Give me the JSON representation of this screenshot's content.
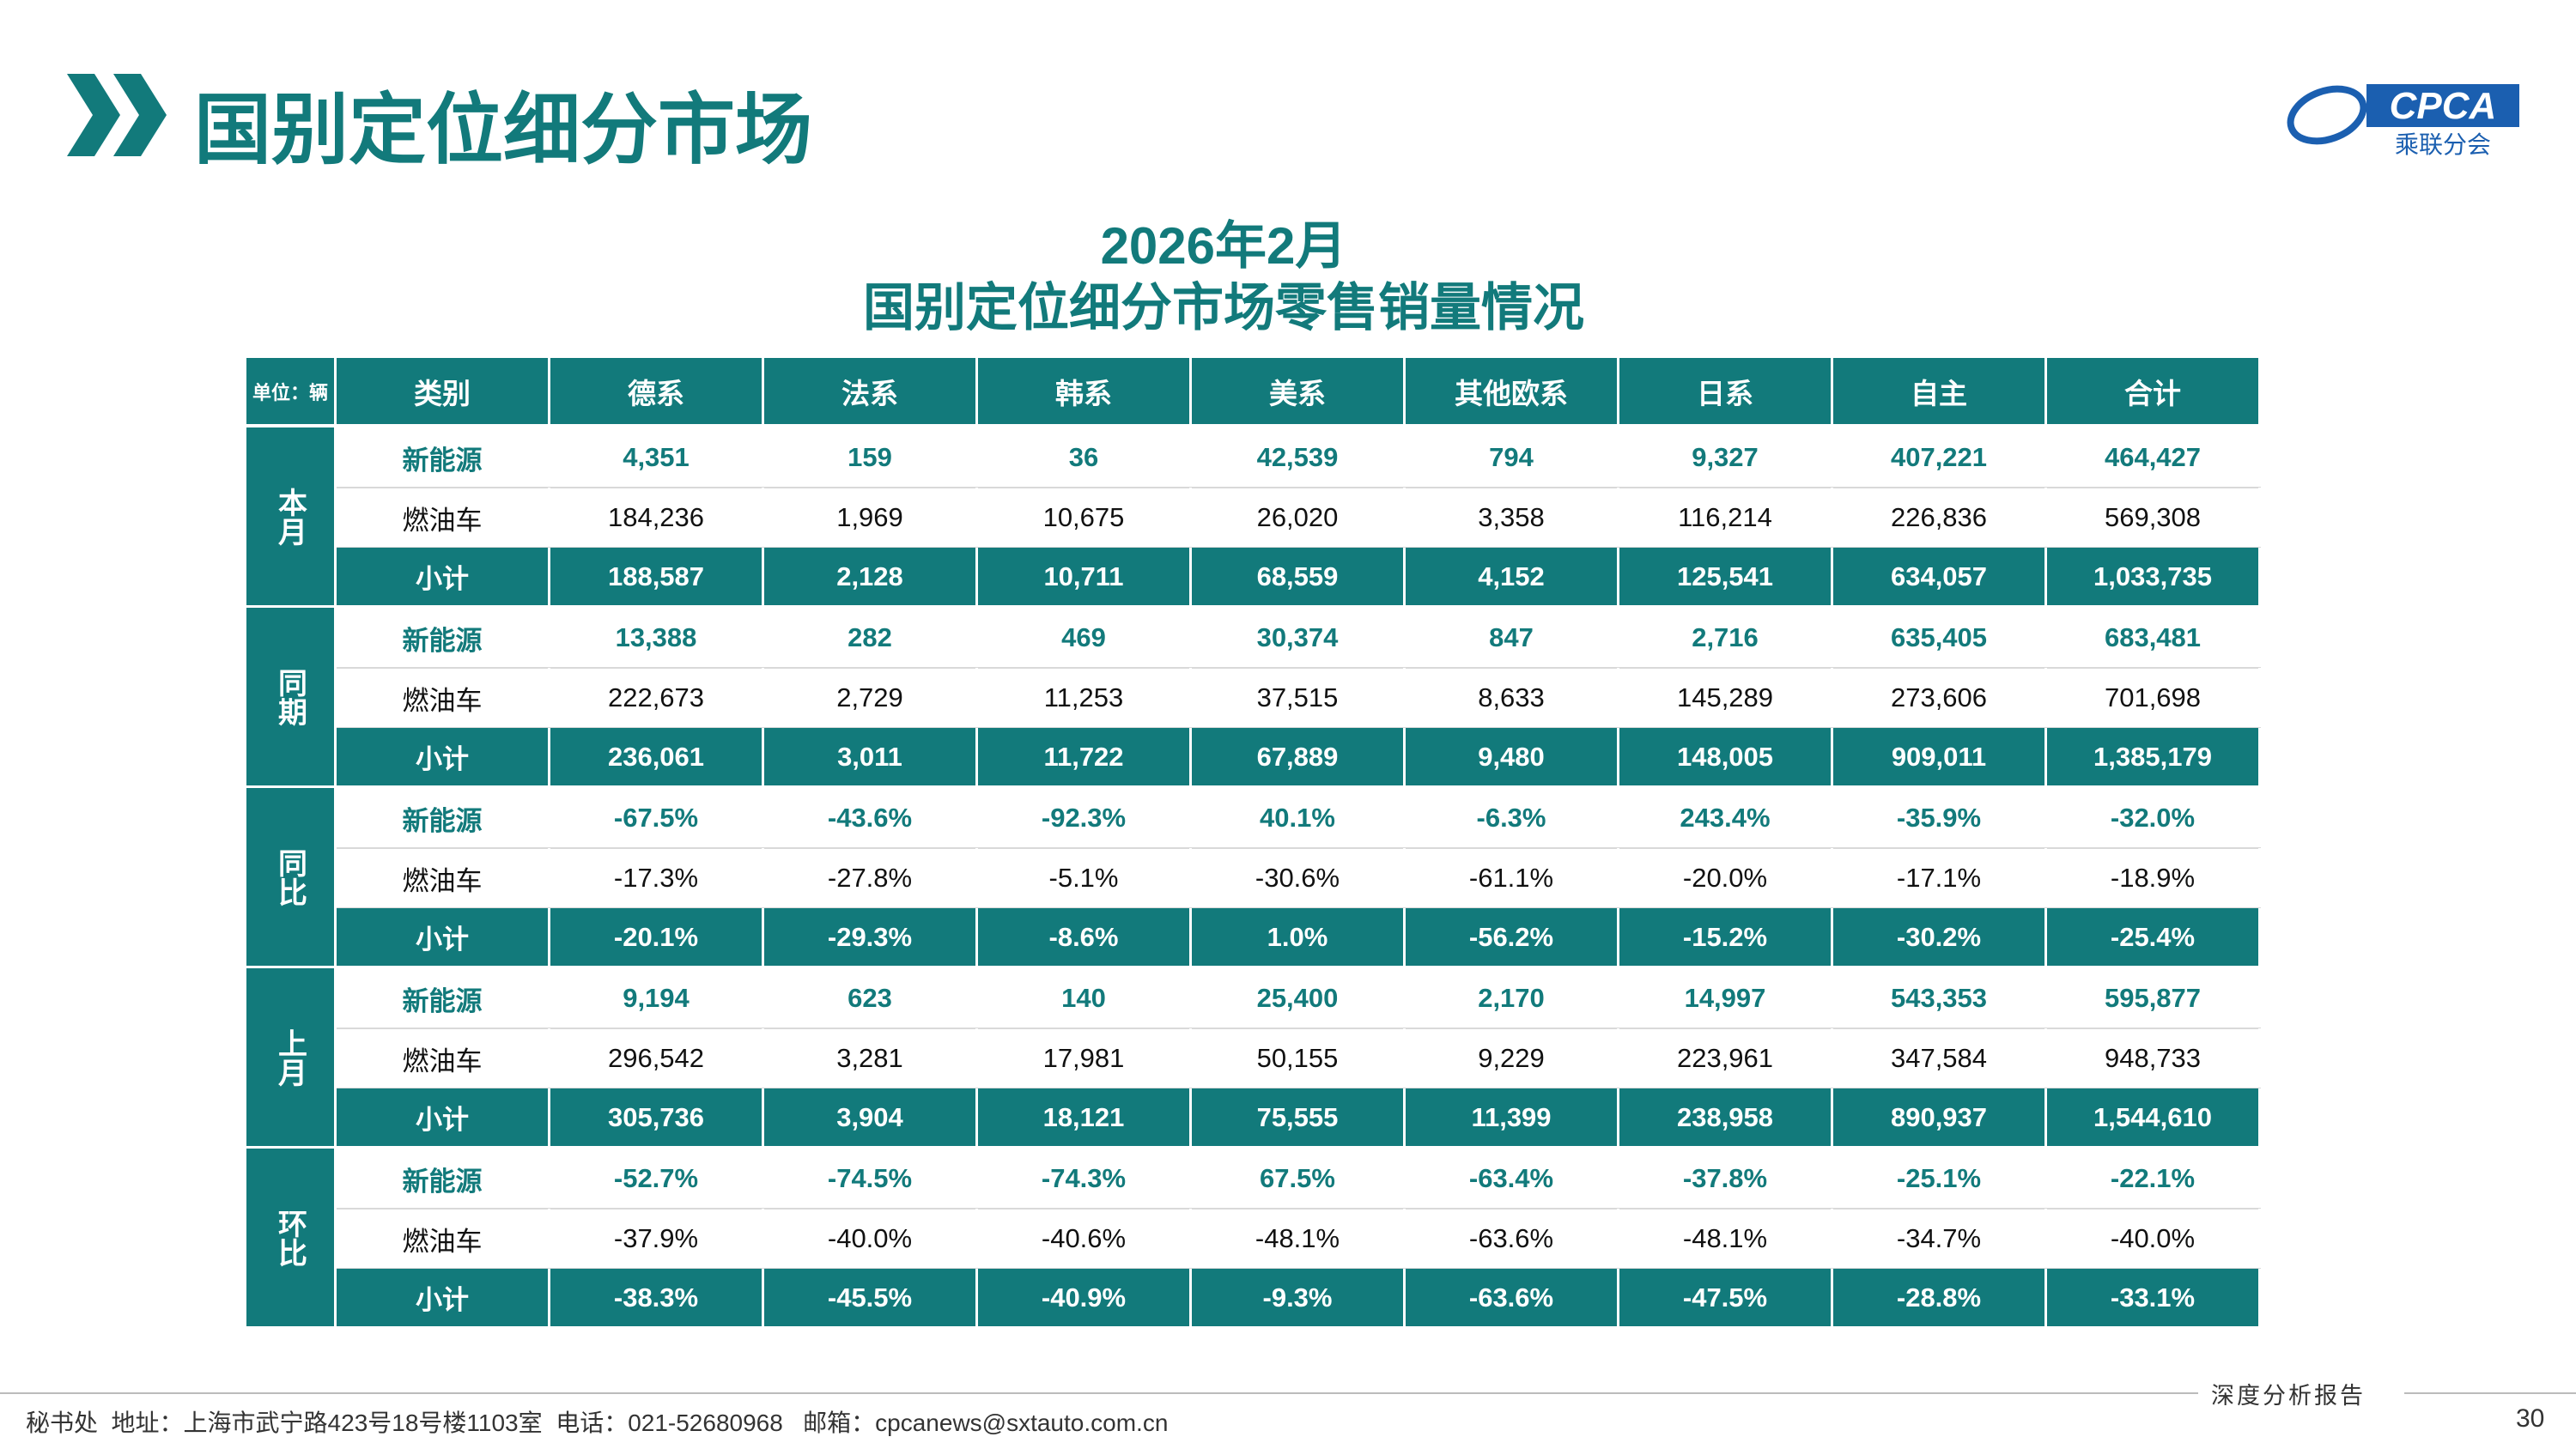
{
  "header": {
    "title": "国别定位细分市场",
    "logo_main": "CPCA",
    "logo_sub": "乘联分会"
  },
  "table": {
    "title_line1": "2026年2月",
    "title_line2": "国别定位细分市场零售销量情况",
    "unit": "单位：辆",
    "columns": [
      "类别",
      "德系",
      "法系",
      "韩系",
      "美系",
      "其他欧系",
      "日系",
      "自主",
      "合计"
    ],
    "groups": [
      {
        "label": "本月",
        "rows": [
          {
            "label": "新能源",
            "values": [
              "4,351",
              "159",
              "36",
              "42,539",
              "794",
              "9,327",
              "407,221",
              "464,427"
            ]
          },
          {
            "label": "燃油车",
            "values": [
              "184,236",
              "1,969",
              "10,675",
              "26,020",
              "3,358",
              "116,214",
              "226,836",
              "569,308"
            ]
          },
          {
            "label": "小计",
            "values": [
              "188,587",
              "2,128",
              "10,711",
              "68,559",
              "4,152",
              "125,541",
              "634,057",
              "1,033,735"
            ]
          }
        ]
      },
      {
        "label": "同期",
        "rows": [
          {
            "label": "新能源",
            "values": [
              "13,388",
              "282",
              "469",
              "30,374",
              "847",
              "2,716",
              "635,405",
              "683,481"
            ]
          },
          {
            "label": "燃油车",
            "values": [
              "222,673",
              "2,729",
              "11,253",
              "37,515",
              "8,633",
              "145,289",
              "273,606",
              "701,698"
            ]
          },
          {
            "label": "小计",
            "values": [
              "236,061",
              "3,011",
              "11,722",
              "67,889",
              "9,480",
              "148,005",
              "909,011",
              "1,385,179"
            ]
          }
        ]
      },
      {
        "label": "同比",
        "rows": [
          {
            "label": "新能源",
            "values": [
              "-67.5%",
              "-43.6%",
              "-92.3%",
              "40.1%",
              "-6.3%",
              "243.4%",
              "-35.9%",
              "-32.0%"
            ]
          },
          {
            "label": "燃油车",
            "values": [
              "-17.3%",
              "-27.8%",
              "-5.1%",
              "-30.6%",
              "-61.1%",
              "-20.0%",
              "-17.1%",
              "-18.9%"
            ]
          },
          {
            "label": "小计",
            "values": [
              "-20.1%",
              "-29.3%",
              "-8.6%",
              "1.0%",
              "-56.2%",
              "-15.2%",
              "-30.2%",
              "-25.4%"
            ]
          }
        ]
      },
      {
        "label": "上月",
        "rows": [
          {
            "label": "新能源",
            "values": [
              "9,194",
              "623",
              "140",
              "25,400",
              "2,170",
              "14,997",
              "543,353",
              "595,877"
            ]
          },
          {
            "label": "燃油车",
            "values": [
              "296,542",
              "3,281",
              "17,981",
              "50,155",
              "9,229",
              "223,961",
              "347,584",
              "948,733"
            ]
          },
          {
            "label": "小计",
            "values": [
              "305,736",
              "3,904",
              "18,121",
              "75,555",
              "11,399",
              "238,958",
              "890,937",
              "1,544,610"
            ]
          }
        ]
      },
      {
        "label": "环比",
        "rows": [
          {
            "label": "新能源",
            "values": [
              "-52.7%",
              "-74.5%",
              "-74.3%",
              "67.5%",
              "-63.4%",
              "-37.8%",
              "-25.1%",
              "-22.1%"
            ]
          },
          {
            "label": "燃油车",
            "values": [
              "-37.9%",
              "-40.0%",
              "-40.6%",
              "-48.1%",
              "-63.6%",
              "-48.1%",
              "-34.7%",
              "-40.0%"
            ]
          },
          {
            "label": "小计",
            "values": [
              "-38.3%",
              "-45.5%",
              "-40.9%",
              "-9.3%",
              "-63.6%",
              "-47.5%",
              "-28.8%",
              "-33.1%"
            ]
          }
        ]
      }
    ]
  },
  "footer": {
    "address": "秘书处  地址：上海市武宁路423号18号楼1103室  电话：021-52680968   邮箱：cpcanews@sxtauto.com.cn",
    "report": "深度分析报告",
    "page": "30"
  }
}
